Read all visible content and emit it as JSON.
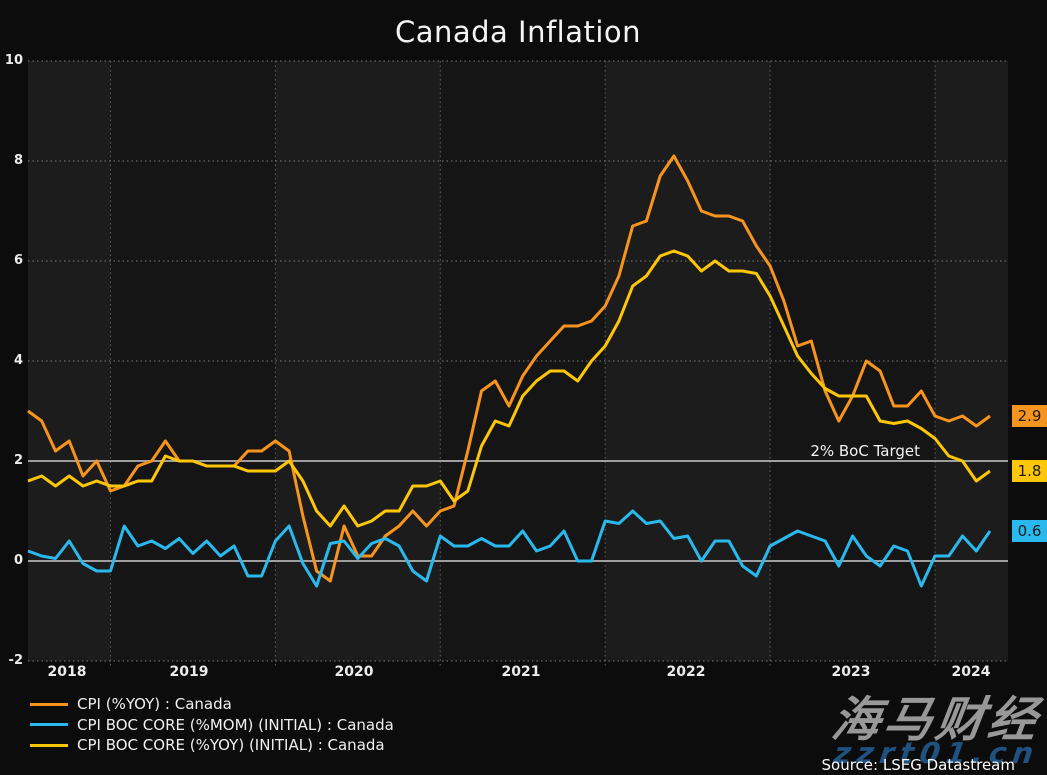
{
  "source": "Source: LSEG Datastream",
  "watermark": {
    "brand_cjk": "海马财经",
    "brand_url": "zzrt01.cn"
  },
  "chart_data": {
    "type": "line",
    "title": "Canada Inflation",
    "x_start": "2018-07",
    "x_end": "2024-05",
    "frequency": "monthly",
    "ylim": [
      -2,
      10
    ],
    "yticks": [
      "10",
      "8",
      "6",
      "4",
      "2",
      "0",
      "-2"
    ],
    "xticks": [
      "2018",
      "2019",
      "2020",
      "2021",
      "2022",
      "2023",
      "2024"
    ],
    "grid": "dotted",
    "legend_position": "bottom-left",
    "background_bands": "alternating-years",
    "target_line": {
      "value": 2,
      "label": "2% BoC Target",
      "color": "#9e9e9e"
    },
    "zero_line": {
      "value": 0,
      "color": "#9e9e9e"
    },
    "series": [
      {
        "name": "CPI (%YOY) : Canada",
        "color": "#f7941e",
        "end_label": "2.9",
        "values": [
          3.0,
          2.8,
          2.2,
          2.4,
          1.7,
          2.0,
          1.4,
          1.5,
          1.9,
          2.0,
          2.4,
          2.0,
          2.0,
          1.9,
          1.9,
          1.9,
          2.2,
          2.2,
          2.4,
          2.2,
          0.9,
          -0.2,
          -0.4,
          0.7,
          0.1,
          0.1,
          0.5,
          0.7,
          1.0,
          0.7,
          1.0,
          1.1,
          2.2,
          3.4,
          3.6,
          3.1,
          3.7,
          4.1,
          4.4,
          4.7,
          4.7,
          4.8,
          5.1,
          5.7,
          6.7,
          6.8,
          7.7,
          8.1,
          7.6,
          7.0,
          6.9,
          6.9,
          6.8,
          6.3,
          5.9,
          5.2,
          4.3,
          4.4,
          3.4,
          2.8,
          3.3,
          4.0,
          3.8,
          3.1,
          3.1,
          3.4,
          2.9,
          2.8,
          2.9,
          2.7,
          2.9
        ]
      },
      {
        "name": "CPI BOC CORE (%MOM) (INITIAL) : Canada",
        "color": "#29b9ec",
        "end_label": "0.6",
        "values": [
          0.2,
          0.1,
          0.05,
          0.4,
          -0.05,
          -0.2,
          -0.2,
          0.7,
          0.3,
          0.4,
          0.25,
          0.45,
          0.15,
          0.4,
          0.1,
          0.3,
          -0.3,
          -0.3,
          0.4,
          0.7,
          -0.05,
          -0.5,
          0.35,
          0.4,
          0.05,
          0.35,
          0.45,
          0.3,
          -0.2,
          -0.4,
          0.5,
          0.3,
          0.3,
          0.45,
          0.3,
          0.3,
          0.6,
          0.2,
          0.3,
          0.6,
          0.0,
          0.0,
          0.8,
          0.75,
          1.0,
          0.75,
          0.8,
          0.45,
          0.5,
          0.0,
          0.4,
          0.4,
          -0.1,
          -0.3,
          0.3,
          0.45,
          0.6,
          0.5,
          0.4,
          -0.1,
          0.5,
          0.1,
          -0.1,
          0.3,
          0.2,
          -0.5,
          0.1,
          0.1,
          0.5,
          0.2,
          0.6
        ]
      },
      {
        "name": "CPI BOC CORE (%YOY) (INITIAL) : Canada",
        "color": "#fdc608",
        "end_label": "1.8",
        "values": [
          1.6,
          1.7,
          1.5,
          1.7,
          1.5,
          1.6,
          1.5,
          1.5,
          1.6,
          1.6,
          2.1,
          2.0,
          2.0,
          1.9,
          1.9,
          1.9,
          1.8,
          1.8,
          1.8,
          2.0,
          1.6,
          1.0,
          0.7,
          1.1,
          0.7,
          0.8,
          1.0,
          1.0,
          1.5,
          1.5,
          1.6,
          1.2,
          1.4,
          2.3,
          2.8,
          2.7,
          3.3,
          3.6,
          3.8,
          3.8,
          3.6,
          4.0,
          4.3,
          4.8,
          5.5,
          5.7,
          6.1,
          6.2,
          6.1,
          5.8,
          6.0,
          5.8,
          5.8,
          5.75,
          5.3,
          4.7,
          4.1,
          3.75,
          3.45,
          3.3,
          3.3,
          3.3,
          2.8,
          2.75,
          2.8,
          2.65,
          2.45,
          2.1,
          2.0,
          1.6,
          1.8
        ]
      }
    ]
  }
}
